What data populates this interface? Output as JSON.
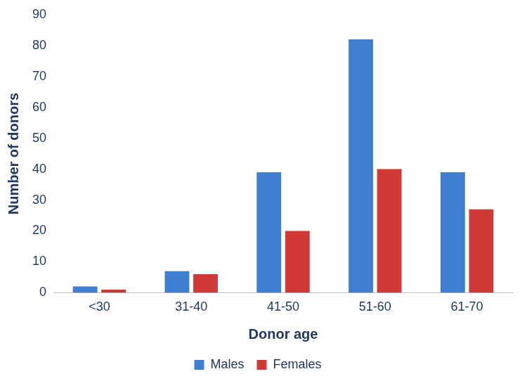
{
  "chart_data": {
    "type": "bar",
    "categories": [
      "<30",
      "31-40",
      "41-50",
      "51-60",
      "61-70"
    ],
    "series": [
      {
        "name": "Males",
        "color": "#3f7fd0",
        "values": [
          2,
          7,
          39,
          82,
          39
        ]
      },
      {
        "name": "Females",
        "color": "#cf3a36",
        "values": [
          1,
          6,
          20,
          40,
          27
        ]
      }
    ],
    "x_label": "Donor age",
    "y_label": "Number of donors",
    "ylim": [
      0,
      90
    ],
    "yticks": [
      0,
      10,
      20,
      30,
      40,
      50,
      60,
      70,
      80,
      90
    ],
    "grid": false,
    "legend": "bottom"
  }
}
